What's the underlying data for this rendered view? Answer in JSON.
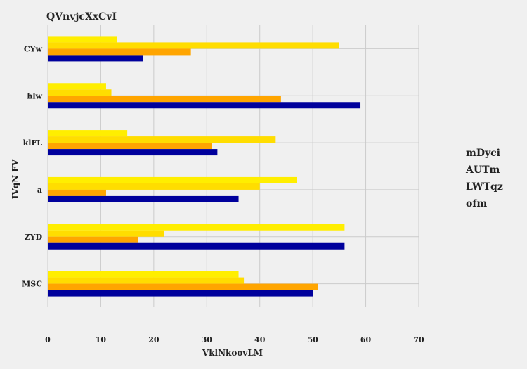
{
  "chart_data": {
    "type": "bar",
    "orientation": "horizontal",
    "title": "QVnvjcXxCvI",
    "xlabel": "VklNkoovLM",
    "ylabel": "IVqN FV",
    "xlim": [
      0,
      70
    ],
    "xticks": [
      0,
      10,
      20,
      30,
      40,
      50,
      60,
      70
    ],
    "grid": true,
    "legend_position": "right",
    "categories": [
      "CYw",
      "hlw",
      "klFL",
      "a",
      "ZYD",
      "MSC"
    ],
    "series": [
      {
        "name": "mDyci",
        "color": "#ffee00",
        "values": [
          13,
          11,
          15,
          47,
          56,
          36
        ]
      },
      {
        "name": "AUTm",
        "color": "#ffdd00",
        "values": [
          55,
          12,
          43,
          40,
          22,
          37
        ]
      },
      {
        "name": "LWTqz",
        "color": "#ffa500",
        "values": [
          27,
          44,
          31,
          11,
          17,
          51
        ]
      },
      {
        "name": "ofm",
        "color": "#00009c",
        "values": [
          18,
          59,
          32,
          36,
          56,
          50
        ]
      }
    ]
  }
}
